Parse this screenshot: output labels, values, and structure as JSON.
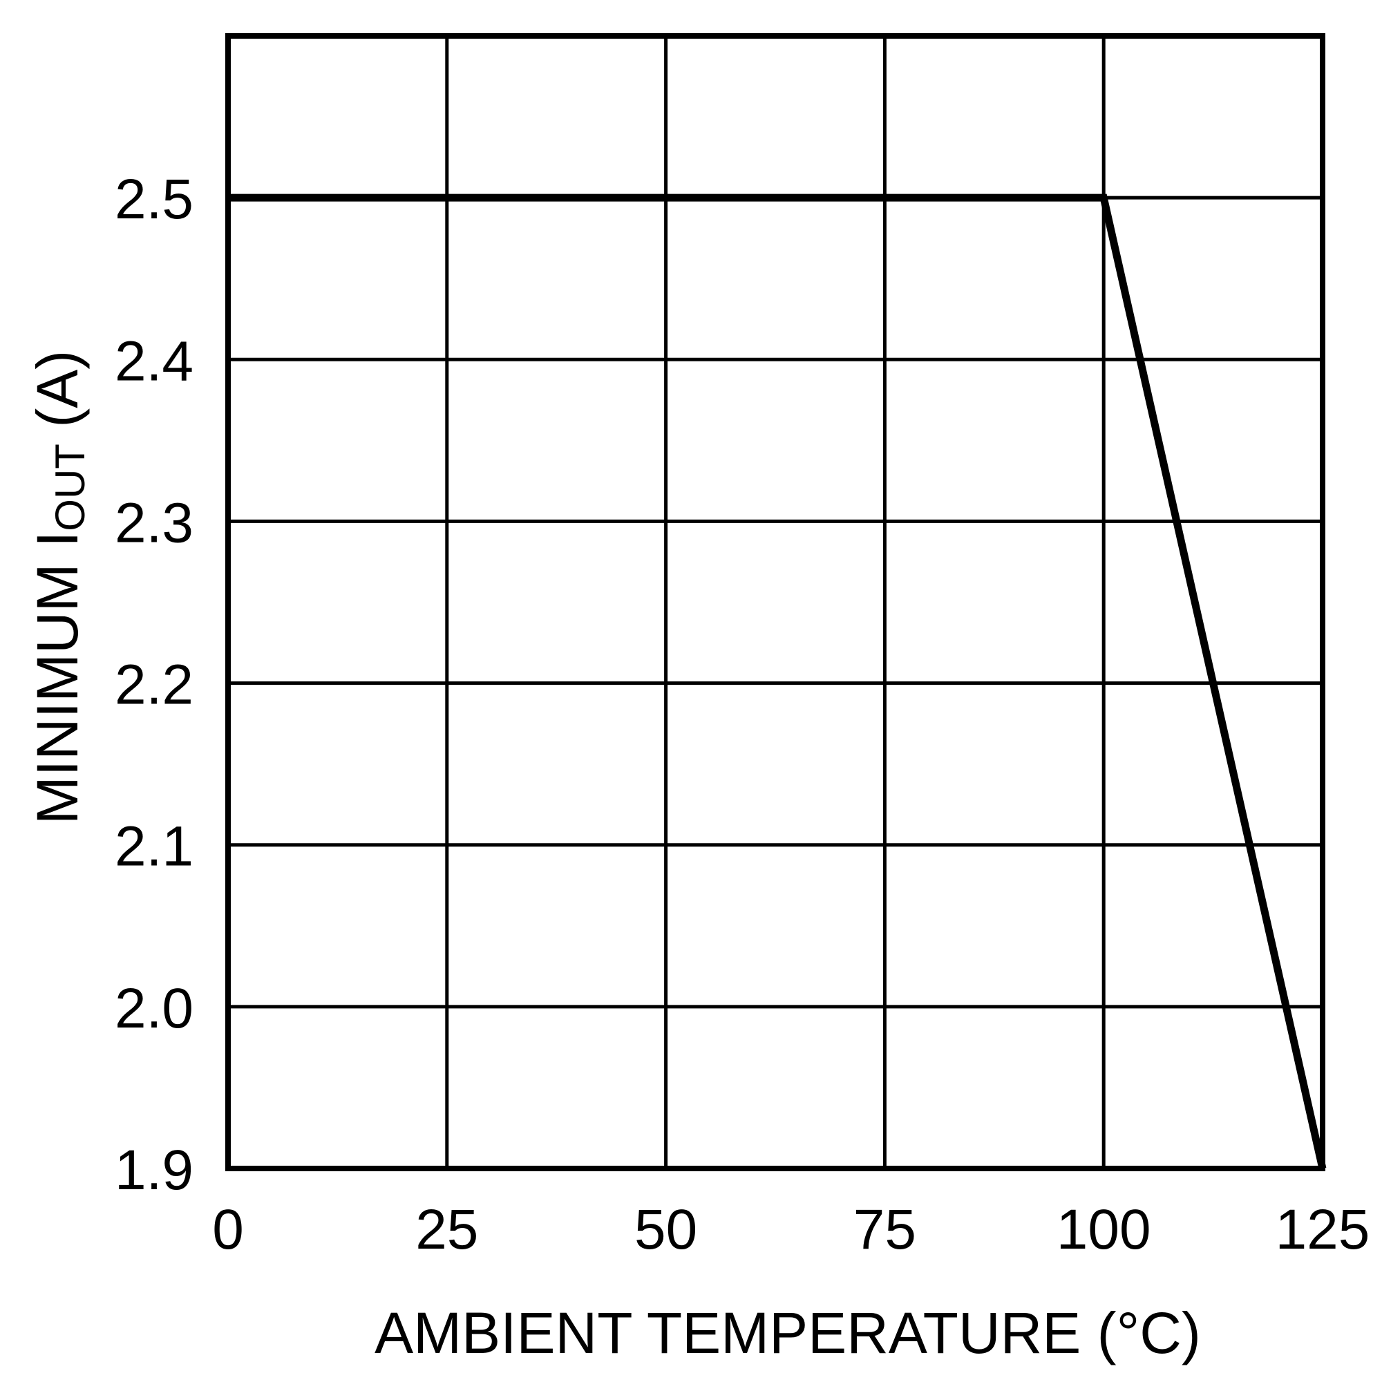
{
  "chart_data": {
    "type": "line",
    "title": "",
    "xlabel": "AMBIENT TEMPERATURE (°C)",
    "ylabel": "MINIMUM I_OUT (A)",
    "ylabel_parts": {
      "prefix": "MINIMUM I",
      "subscript": "OUT",
      "suffix": " (A)"
    },
    "xlim": [
      0,
      125
    ],
    "ylim": [
      1.9,
      2.6
    ],
    "x_ticks": [
      0,
      25,
      50,
      75,
      100,
      125
    ],
    "x_tick_labels": [
      "0",
      "25",
      "50",
      "75",
      "100",
      "125"
    ],
    "y_ticks": [
      1.9,
      2.0,
      2.1,
      2.2,
      2.3,
      2.4,
      2.5
    ],
    "y_tick_labels": [
      "1.9",
      "2.0",
      "2.1",
      "2.2",
      "2.3",
      "2.4",
      "2.5"
    ],
    "grid": true,
    "legend": null,
    "series": [
      {
        "name": "Minimum IOUT",
        "color": "#000000",
        "x": [
          0,
          100,
          125
        ],
        "y": [
          2.5,
          2.5,
          1.9
        ]
      }
    ]
  },
  "style": {
    "line_color": "#000000",
    "grid_color": "#000000",
    "background": "#ffffff"
  }
}
